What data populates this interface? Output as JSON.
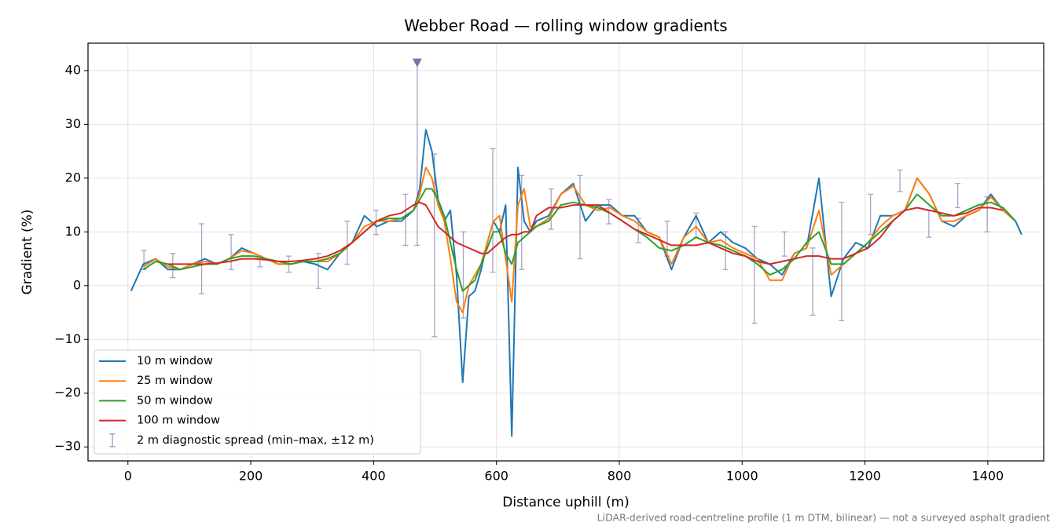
{
  "chart_data": {
    "type": "line",
    "title": "Webber Road — rolling window gradients",
    "xlabel": "Distance uphill (m)",
    "ylabel": "Gradient (%)",
    "footnote": "LiDAR-derived road-centreline profile (1 m DTM, bilinear) — not a surveyed asphalt gradient",
    "xlim": [
      -65,
      1491
    ],
    "ylim": [
      -32.6,
      45.1
    ],
    "xticks": [
      0,
      200,
      400,
      600,
      800,
      1000,
      1200,
      1400
    ],
    "yticks": [
      {
        "value": -30,
        "label": "−30"
      },
      {
        "value": -20,
        "label": "−20"
      },
      {
        "value": -10,
        "label": "−10"
      },
      0,
      10,
      20,
      30,
      40
    ],
    "grid": true,
    "legend": "lower left",
    "x": [
      5,
      25,
      45,
      65,
      85,
      105,
      125,
      145,
      165,
      185,
      205,
      225,
      245,
      265,
      285,
      305,
      325,
      345,
      365,
      385,
      405,
      425,
      445,
      465,
      475,
      485,
      495,
      505,
      515,
      525,
      535,
      545,
      555,
      565,
      575,
      585,
      595,
      605,
      615,
      625,
      635,
      645,
      655,
      665,
      685,
      705,
      725,
      745,
      765,
      785,
      805,
      825,
      845,
      865,
      885,
      905,
      925,
      945,
      965,
      985,
      1005,
      1025,
      1045,
      1065,
      1085,
      1105,
      1125,
      1145,
      1165,
      1185,
      1205,
      1225,
      1245,
      1265,
      1285,
      1305,
      1325,
      1345,
      1365,
      1385,
      1405,
      1425,
      1445,
      1455
    ],
    "series": [
      {
        "name": "10 m window",
        "color": "#1f77b4",
        "values": [
          -1,
          4,
          5,
          3,
          3,
          4,
          5,
          4,
          5,
          7,
          6,
          5,
          4,
          4,
          4.5,
          4,
          3,
          6,
          8,
          13,
          11,
          12,
          12,
          14,
          18,
          29,
          25,
          16,
          12,
          14,
          2,
          -18,
          -2,
          -1,
          3,
          8,
          12,
          10,
          15,
          -28,
          22,
          12,
          10,
          12,
          13,
          17,
          19,
          12,
          15,
          15,
          13,
          13,
          10,
          9,
          3,
          9,
          13,
          8,
          10,
          8,
          7,
          5,
          4,
          2,
          6,
          7,
          20,
          -2,
          5,
          8,
          7,
          13,
          13,
          14,
          20,
          17,
          12,
          11,
          13,
          14,
          17,
          14,
          12,
          9.5
        ]
      },
      {
        "name": "25 m window",
        "color": "#ff7f0e",
        "values": [
          null,
          3.5,
          5,
          3.5,
          3,
          4,
          4.5,
          4,
          5,
          6.5,
          6,
          5,
          4,
          4,
          4.5,
          4.5,
          4.5,
          6,
          8,
          11,
          12,
          12,
          12.5,
          14,
          17,
          22,
          20,
          15,
          12,
          5,
          -3,
          -5,
          0,
          2,
          4,
          8,
          12,
          13,
          5,
          -3,
          15,
          18,
          11,
          11,
          12.5,
          17,
          18.5,
          15,
          14,
          14.5,
          13,
          12,
          10,
          9,
          4,
          9,
          11,
          8,
          8.5,
          7,
          6,
          5,
          1,
          1,
          6,
          7,
          14,
          2,
          4,
          6,
          8,
          11,
          13,
          14,
          20,
          17,
          12,
          12,
          13,
          14,
          16.5,
          14,
          12,
          null
        ]
      },
      {
        "name": "50 m window",
        "color": "#2ca02c",
        "values": [
          null,
          3,
          4.5,
          4,
          3,
          3.5,
          4,
          4,
          5,
          5.5,
          5.5,
          5,
          4.5,
          4,
          4.5,
          4.5,
          5,
          6,
          8,
          10,
          12,
          12.5,
          12.5,
          14,
          16,
          18,
          18,
          16,
          13,
          8,
          3,
          -1,
          0,
          1,
          4,
          7,
          10,
          10,
          6,
          4,
          8,
          9,
          10,
          11,
          12,
          15,
          15.5,
          15,
          14.5,
          13.5,
          12,
          10.5,
          9,
          7,
          6.5,
          7.5,
          9,
          8,
          7.5,
          6.5,
          5.5,
          4,
          2,
          3,
          5,
          8,
          10,
          4,
          4,
          6,
          8,
          10,
          12,
          14,
          17,
          15,
          13,
          13,
          14,
          15,
          15.5,
          14.5,
          12,
          null
        ]
      },
      {
        "name": "100 m window",
        "color": "#d62728",
        "values": [
          null,
          null,
          null,
          4,
          4,
          4,
          4,
          4.2,
          4.5,
          5,
          5,
          4.8,
          4.5,
          4.5,
          4.7,
          5,
          5.5,
          6.5,
          8,
          10,
          12,
          13,
          13.5,
          15,
          15.5,
          15,
          13,
          11,
          10,
          9,
          8,
          7.5,
          7,
          6.5,
          6,
          6,
          7,
          8,
          9,
          9.5,
          9.5,
          10,
          10,
          13,
          14.5,
          14.5,
          15,
          15,
          15,
          13.5,
          12,
          10.5,
          9.5,
          8.5,
          7.5,
          7.5,
          7.5,
          8,
          7,
          6,
          5.5,
          4.5,
          4,
          4.5,
          5,
          5.5,
          5.5,
          5,
          5,
          6,
          7,
          9,
          12,
          14,
          14.5,
          14,
          13.5,
          13,
          13.5,
          14.5,
          14.5,
          14,
          null,
          null
        ]
      }
    ],
    "errorbars": {
      "name": "2 m diagnostic spread (min–max, ±12 m)",
      "color": "#9b93b8",
      "x": [
        26,
        73,
        120,
        168,
        215,
        262,
        310,
        357,
        404,
        452,
        471,
        499,
        546,
        594,
        641,
        689,
        736,
        783,
        831,
        878,
        925,
        973,
        1020,
        1069,
        1115,
        1162,
        1209,
        1257,
        1304,
        1351,
        1399
      ],
      "low": [
        3,
        1.5,
        -1.5,
        3,
        3.5,
        2.5,
        -0.5,
        4,
        9.5,
        7.5,
        7.5,
        -9.5,
        -6,
        2.5,
        3,
        10.5,
        5,
        11.5,
        8,
        5.5,
        9,
        3,
        -7,
        5.5,
        -5.5,
        -6.5,
        9.5,
        17.5,
        9,
        14.5,
        10
      ],
      "high": [
        6.5,
        6,
        11.5,
        9.5,
        5.5,
        5.5,
        6,
        12,
        14,
        17,
        41.5,
        24.5,
        10,
        25.5,
        20.5,
        18,
        20.5,
        16,
        12.5,
        12,
        13.5,
        10,
        11,
        10,
        7,
        15.5,
        17,
        21.5,
        14,
        19,
        16.5
      ]
    },
    "clip_marker": {
      "x": 471,
      "y": 41.5,
      "color": "#8070a8"
    }
  }
}
